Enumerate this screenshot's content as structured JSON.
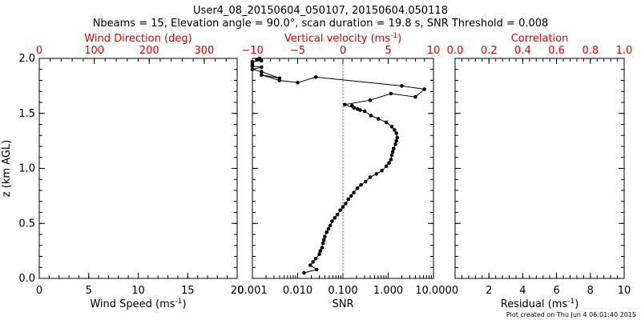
{
  "header": {
    "title": "User4_08_20150604_050107, 20150604.050118",
    "subtitle": "Nbeams = 15, Elevation angle = 90.0°, scan duration = 19.8 s, SNR Threshold = 0.008"
  },
  "footer": {
    "created": "Plot created on Thu Jun  4 06:01:40 2015"
  },
  "colors": {
    "axis": "#000000",
    "top_axis": "#e00000",
    "threshold": "#e00000"
  },
  "chart_data": [
    {
      "type": "line",
      "panel": "left",
      "title": "",
      "ylabel": "z (km AGL)",
      "ylim": [
        0,
        2
      ],
      "y_ticks": [
        "0.0",
        "0.5",
        "1.0",
        "1.5",
        "2.0"
      ],
      "bottom_axis": {
        "label": "Wind Speed (ms",
        "unit_sup": "-1",
        "label_end": ")",
        "range": [
          0,
          20
        ],
        "ticks": [
          "0",
          "5",
          "10",
          "15",
          "20"
        ]
      },
      "top_axis": {
        "label": "Wind Direction (deg)",
        "range": [
          0,
          360
        ],
        "ticks": [
          "0",
          "100",
          "200",
          "300"
        ],
        "tick_values": [
          0,
          100,
          200,
          300
        ]
      },
      "series": []
    },
    {
      "type": "line",
      "panel": "middle",
      "ylim": [
        0,
        2
      ],
      "bottom_axis": {
        "label": "SNR",
        "scale": "log",
        "range": [
          0.001,
          10
        ],
        "ticks": [
          "0.001",
          "0.010",
          "0.100",
          "1.000",
          "10.000"
        ],
        "tick_values": [
          0.001,
          0.01,
          0.1,
          1,
          10
        ]
      },
      "top_axis": {
        "label": "Vertical velocity (ms",
        "unit_sup": "-1",
        "label_end": ")",
        "range": [
          -10,
          10
        ],
        "ticks": [
          "−10",
          "−5",
          "0",
          "5",
          "10"
        ],
        "tick_values": [
          -10,
          -5,
          0,
          5,
          10
        ]
      },
      "threshold": {
        "snr": 0.1,
        "style": "dotted"
      },
      "series": [
        {
          "axis": "top",
          "marker": "dot",
          "x": [
            -4.3,
            -2.9,
            -3.6,
            -3.3,
            -3.0,
            -2.6,
            -2.5,
            -2.3,
            -2.2,
            -2.1,
            -2.0,
            -1.8,
            -1.6,
            -1.4,
            -1.2,
            -0.9,
            -0.6,
            -0.3,
            0.0,
            0.3,
            0.6,
            0.9,
            1.2,
            1.6,
            2.0,
            2.5,
            3.0,
            3.7,
            4.3,
            4.8,
            5.1,
            5.3,
            5.4,
            5.5,
            5.6,
            5.8,
            5.9,
            6.0,
            5.9,
            5.7,
            5.4,
            4.8,
            3.9,
            3.1,
            2.4,
            1.9,
            1.6,
            1.0,
            1.2,
            0.2,
            3.0,
            5.3,
            8.0,
            9.0,
            6.5,
            -3.0,
            -5.0,
            -7.0,
            -9.0,
            -7.0,
            -9.0,
            -10.0,
            -9.0,
            -10.0,
            -10.0,
            -10.0,
            -9.0,
            -9.5,
            -9.2
          ],
          "y": [
            0.05,
            0.08,
            0.12,
            0.15,
            0.18,
            0.22,
            0.25,
            0.28,
            0.32,
            0.35,
            0.38,
            0.42,
            0.45,
            0.48,
            0.52,
            0.55,
            0.58,
            0.62,
            0.65,
            0.68,
            0.72,
            0.75,
            0.78,
            0.82,
            0.85,
            0.88,
            0.92,
            0.95,
            0.98,
            1.02,
            1.05,
            1.08,
            1.12,
            1.15,
            1.18,
            1.22,
            1.25,
            1.28,
            1.32,
            1.35,
            1.38,
            1.42,
            1.45,
            1.48,
            1.52,
            1.53,
            1.54,
            1.57,
            1.55,
            1.58,
            1.62,
            1.68,
            1.65,
            1.72,
            1.75,
            1.83,
            1.78,
            1.8,
            1.85,
            1.82,
            1.88,
            1.9,
            1.92,
            1.93,
            1.95,
            1.97,
            1.98,
            1.99,
            2.0
          ]
        }
      ]
    },
    {
      "type": "line",
      "panel": "right",
      "ylim": [
        0,
        2
      ],
      "bottom_axis": {
        "label": "Residual (ms",
        "unit_sup": "-1",
        "label_end": ")",
        "range": [
          0,
          10
        ],
        "ticks": [
          "0",
          "2",
          "4",
          "6",
          "8",
          "10"
        ]
      },
      "top_axis": {
        "label": "Correlation",
        "range": [
          0,
          1
        ],
        "ticks": [
          "0.0",
          "0.2",
          "0.4",
          "0.6",
          "0.8",
          "1.0"
        ]
      },
      "series": []
    }
  ]
}
